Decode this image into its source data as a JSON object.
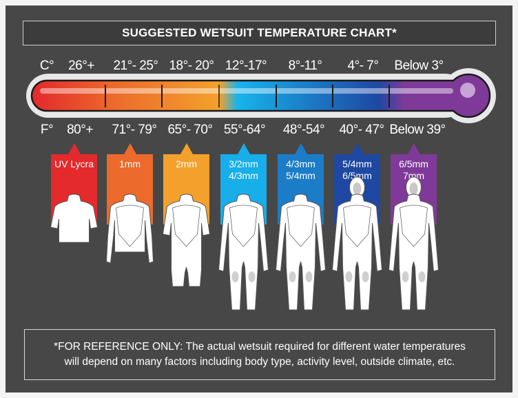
{
  "title": "SUGGESTED WETSUIT TEMPERATURE CHART*",
  "celsius_unit": "C°",
  "fahrenheit_unit": "F°",
  "columns": [
    {
      "celsius": "26°+",
      "fahrenheit": "80°+",
      "suit": [
        "UV Lycra"
      ],
      "color": "#e42a2c",
      "suit_icon": "short-sleeve-rash-guard"
    },
    {
      "celsius": "21°- 25°",
      "fahrenheit": "71°- 79°",
      "suit": [
        "1mm"
      ],
      "color": "#ec6a2b",
      "suit_icon": "long-sleeve-top"
    },
    {
      "celsius": "18°- 20°",
      "fahrenheit": "65°- 70°",
      "suit": [
        "2mm"
      ],
      "color": "#f3a12c",
      "suit_icon": "shorty-wetsuit"
    },
    {
      "celsius": "12°-17°",
      "fahrenheit": "55°-64°",
      "suit": [
        "3/2mm",
        "4/3mm"
      ],
      "color": "#17aee9",
      "suit_icon": "full-wetsuit"
    },
    {
      "celsius": "8°-11°",
      "fahrenheit": "48°-54°",
      "suit": [
        "4/3mm",
        "5/4mm"
      ],
      "color": "#1b7cc8",
      "suit_icon": "full-wetsuit"
    },
    {
      "celsius": "4°- 7°",
      "fahrenheit": "40°- 47°",
      "suit": [
        "5/4mm",
        "6/5mm"
      ],
      "color": "#1f48a3",
      "suit_icon": "hooded-wetsuit"
    },
    {
      "celsius": "Below 3°",
      "fahrenheit": "Below 39°",
      "suit": [
        "6/5mm",
        "7mm"
      ],
      "color": "#7f3a99",
      "suit_icon": "hooded-wetsuit"
    }
  ],
  "footer": {
    "line1": "*FOR REFERENCE ONLY: The actual wetsuit required for different water temperatures",
    "line2": "will depend on many factors including body type, activity level, outside climate, etc."
  }
}
